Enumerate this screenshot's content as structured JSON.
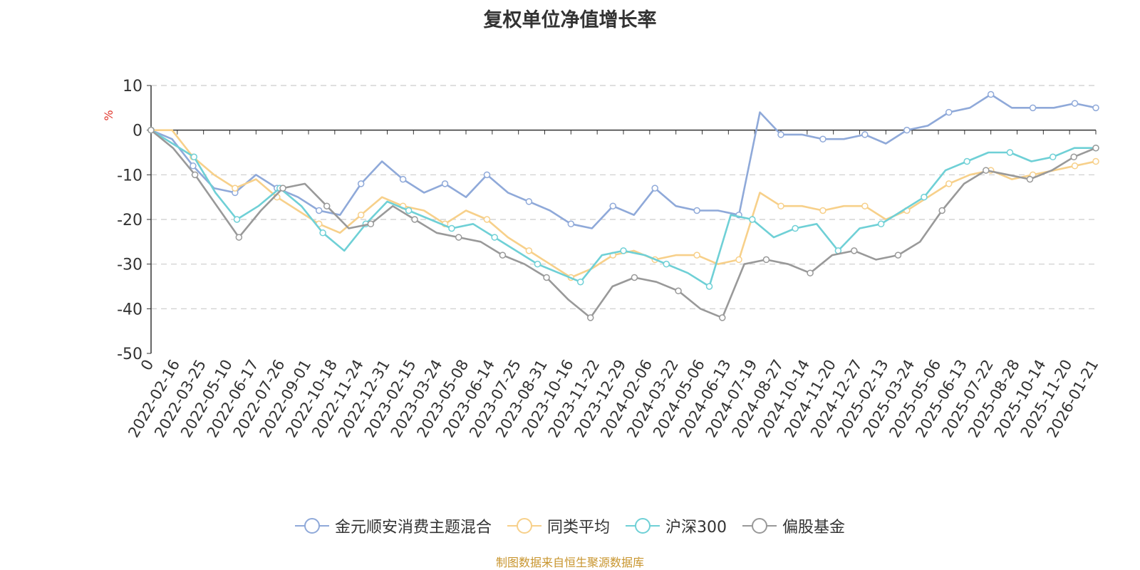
{
  "title": "复权单位净值增长率",
  "footer": "制图数据来自恒生聚源数据库",
  "chart_data": {
    "type": "line",
    "title": "复权单位净值增长率",
    "ylabel": "%",
    "ylim": [
      -50,
      10
    ],
    "yticks": [
      10,
      0,
      -10,
      -20,
      -30,
      -40,
      -50
    ],
    "ytick_labels": [
      "10",
      "0",
      "-10",
      "-20",
      "-30",
      "-40",
      "-50"
    ],
    "grid": true,
    "legend_position": "bottom",
    "x_tick_labels": [
      "0",
      "2022-02-16",
      "2022-03-25",
      "2022-05-10",
      "2022-06-17",
      "2022-07-26",
      "2022-09-01",
      "2022-10-18",
      "2022-11-24",
      "2022-12-31",
      "2023-02-15",
      "2023-03-24",
      "2023-05-08",
      "2023-06-14",
      "2023-07-25",
      "2023-08-31",
      "2023-10-16",
      "2023-11-22",
      "2023-12-29",
      "2024-02-06",
      "2024-03-22",
      "2024-05-06",
      "2024-06-13",
      "2024-07-19",
      "2024-08-27",
      "2024-10-14",
      "2024-11-20",
      "2024-12-27",
      "2025-02-13",
      "2025-03-24",
      "2025-05-06",
      "2025-06-13",
      "2025-07-22",
      "2025-08-28",
      "2025-10-14",
      "2025-11-20",
      "2026-01-21"
    ],
    "series": [
      {
        "name": "金元顺安消费主题混合",
        "color": "#8fa9d9",
        "values": [
          0,
          -2,
          -8,
          -13,
          -14,
          -10,
          -13,
          -15,
          -18,
          -19,
          -12,
          -7,
          -11,
          -14,
          -12,
          -15,
          -10,
          -14,
          -16,
          -18,
          -21,
          -22,
          -17,
          -19,
          -13,
          -17,
          -18,
          -18,
          -19,
          4,
          -1,
          -1,
          -2,
          -2,
          -1,
          -3,
          0,
          1,
          4,
          5,
          8,
          5,
          5,
          5,
          6,
          5
        ]
      },
      {
        "name": "同类平均",
        "color": "#f7d08a",
        "values": [
          0,
          0,
          -6,
          -10,
          -13,
          -11,
          -15,
          -18,
          -21,
          -23,
          -19,
          -15,
          -17,
          -18,
          -21,
          -18,
          -20,
          -24,
          -27,
          -30,
          -33,
          -31,
          -28,
          -27,
          -29,
          -28,
          -28,
          -30,
          -29,
          -14,
          -17,
          -17,
          -18,
          -17,
          -17,
          -20,
          -18,
          -15,
          -12,
          -10,
          -9,
          -11,
          -10,
          -9,
          -8,
          -7
        ]
      },
      {
        "name": "沪深300",
        "color": "#6fd0d6",
        "values": [
          0,
          -3,
          -6,
          -14,
          -20,
          -17,
          -13,
          -17,
          -23,
          -27,
          -21,
          -16,
          -18,
          -20,
          -22,
          -21,
          -24,
          -27,
          -30,
          -32,
          -34,
          -28,
          -27,
          -28,
          -30,
          -32,
          -35,
          -19,
          -20,
          -24,
          -22,
          -21,
          -27,
          -22,
          -21,
          -18,
          -15,
          -9,
          -7,
          -5,
          -5,
          -7,
          -6,
          -4,
          -4
        ]
      },
      {
        "name": "偏股基金",
        "color": "#999999",
        "values": [
          0,
          -4,
          -10,
          -17,
          -24,
          -18,
          -13,
          -12,
          -17,
          -22,
          -21,
          -17,
          -20,
          -23,
          -24,
          -25,
          -28,
          -30,
          -33,
          -38,
          -42,
          -35,
          -33,
          -34,
          -36,
          -40,
          -42,
          -30,
          -29,
          -30,
          -32,
          -28,
          -27,
          -29,
          -28,
          -25,
          -18,
          -12,
          -9,
          -10,
          -11,
          -9,
          -6,
          -4
        ]
      }
    ]
  },
  "legend": {
    "items": [
      {
        "label": "金元顺安消费主题混合",
        "color": "#8fa9d9"
      },
      {
        "label": "同类平均",
        "color": "#f7d08a"
      },
      {
        "label": "沪深300",
        "color": "#6fd0d6"
      },
      {
        "label": "偏股基金",
        "color": "#999999"
      }
    ]
  }
}
